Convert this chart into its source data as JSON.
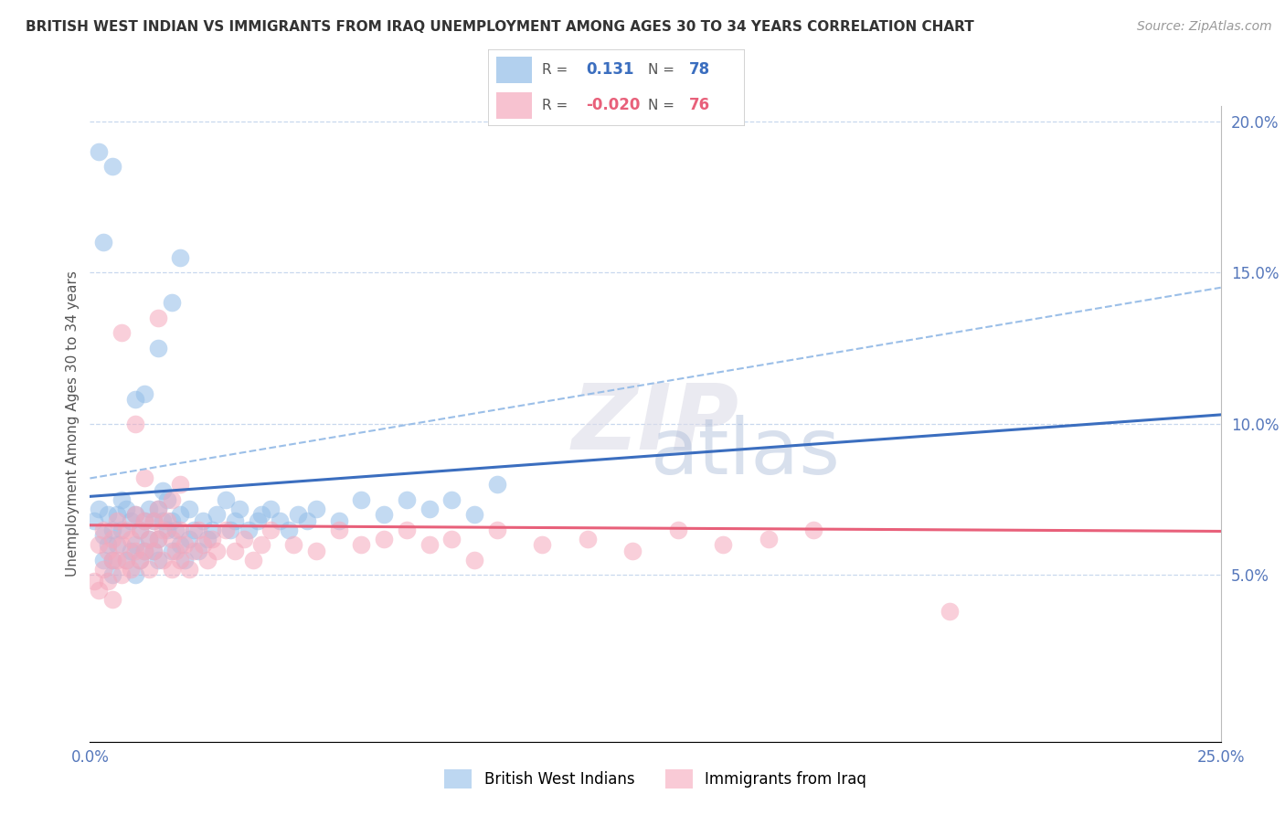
{
  "title": "BRITISH WEST INDIAN VS IMMIGRANTS FROM IRAQ UNEMPLOYMENT AMONG AGES 30 TO 34 YEARS CORRELATION CHART",
  "source": "Source: ZipAtlas.com",
  "ylabel": "Unemployment Among Ages 30 to 34 years",
  "x_ticks": [
    0.0,
    0.05,
    0.1,
    0.15,
    0.2,
    0.25
  ],
  "x_tick_labels": [
    "0.0%",
    "",
    "",
    "",
    "",
    "25.0%"
  ],
  "y_ticks_right": [
    0.0,
    0.05,
    0.1,
    0.15,
    0.2
  ],
  "y_tick_labels_right": [
    "",
    "5.0%",
    "10.0%",
    "15.0%",
    "20.0%"
  ],
  "xlim": [
    0.0,
    0.25
  ],
  "ylim": [
    -0.005,
    0.205
  ],
  "legend_label1": "British West Indians",
  "legend_label2": "Immigrants from Iraq",
  "R1": 0.131,
  "N1": 78,
  "R2": -0.02,
  "N2": 76,
  "color_blue": "#92BDE8",
  "color_pink": "#F5A8BC",
  "color_blue_line": "#3B6EBF",
  "color_pink_line": "#E8607A",
  "color_blue_dashed": "#9BBFE8",
  "blue_line_x0": 0.0,
  "blue_line_y0": 0.076,
  "blue_line_x1": 0.25,
  "blue_line_y1": 0.103,
  "dashed_line_x0": 0.0,
  "dashed_line_y0": 0.082,
  "dashed_line_x1": 0.25,
  "dashed_line_y1": 0.145,
  "pink_line_x0": 0.0,
  "pink_line_y0": 0.0665,
  "pink_line_x1": 0.25,
  "pink_line_y1": 0.0645,
  "blue_x": [
    0.001,
    0.002,
    0.003,
    0.003,
    0.004,
    0.004,
    0.005,
    0.005,
    0.005,
    0.006,
    0.006,
    0.007,
    0.007,
    0.008,
    0.008,
    0.009,
    0.009,
    0.01,
    0.01,
    0.01,
    0.011,
    0.011,
    0.012,
    0.012,
    0.013,
    0.013,
    0.014,
    0.014,
    0.015,
    0.015,
    0.015,
    0.016,
    0.016,
    0.017,
    0.017,
    0.018,
    0.018,
    0.019,
    0.02,
    0.02,
    0.021,
    0.022,
    0.022,
    0.023,
    0.024,
    0.025,
    0.026,
    0.027,
    0.028,
    0.03,
    0.031,
    0.032,
    0.033,
    0.035,
    0.037,
    0.038,
    0.04,
    0.042,
    0.044,
    0.046,
    0.048,
    0.05,
    0.055,
    0.06,
    0.065,
    0.07,
    0.075,
    0.08,
    0.085,
    0.09,
    0.01,
    0.012,
    0.015,
    0.018,
    0.02,
    0.005,
    0.003,
    0.002
  ],
  "blue_y": [
    0.068,
    0.072,
    0.063,
    0.055,
    0.07,
    0.06,
    0.065,
    0.055,
    0.05,
    0.07,
    0.06,
    0.075,
    0.065,
    0.055,
    0.072,
    0.068,
    0.058,
    0.07,
    0.06,
    0.05,
    0.065,
    0.055,
    0.068,
    0.058,
    0.072,
    0.062,
    0.068,
    0.058,
    0.072,
    0.062,
    0.055,
    0.068,
    0.078,
    0.065,
    0.075,
    0.068,
    0.058,
    0.065,
    0.07,
    0.06,
    0.055,
    0.072,
    0.062,
    0.065,
    0.058,
    0.068,
    0.062,
    0.065,
    0.07,
    0.075,
    0.065,
    0.068,
    0.072,
    0.065,
    0.068,
    0.07,
    0.072,
    0.068,
    0.065,
    0.07,
    0.068,
    0.072,
    0.068,
    0.075,
    0.07,
    0.075,
    0.072,
    0.075,
    0.07,
    0.08,
    0.108,
    0.11,
    0.125,
    0.14,
    0.155,
    0.185,
    0.16,
    0.19
  ],
  "pink_x": [
    0.001,
    0.002,
    0.002,
    0.003,
    0.003,
    0.004,
    0.004,
    0.005,
    0.005,
    0.005,
    0.006,
    0.006,
    0.007,
    0.007,
    0.008,
    0.008,
    0.009,
    0.009,
    0.01,
    0.01,
    0.011,
    0.011,
    0.012,
    0.012,
    0.013,
    0.013,
    0.014,
    0.014,
    0.015,
    0.015,
    0.016,
    0.016,
    0.017,
    0.018,
    0.018,
    0.019,
    0.02,
    0.02,
    0.021,
    0.022,
    0.023,
    0.024,
    0.025,
    0.026,
    0.027,
    0.028,
    0.03,
    0.032,
    0.034,
    0.036,
    0.038,
    0.04,
    0.045,
    0.05,
    0.055,
    0.06,
    0.065,
    0.07,
    0.075,
    0.08,
    0.085,
    0.09,
    0.1,
    0.11,
    0.12,
    0.13,
    0.14,
    0.15,
    0.16,
    0.19,
    0.007,
    0.01,
    0.012,
    0.015,
    0.018,
    0.02
  ],
  "pink_y": [
    0.048,
    0.06,
    0.045,
    0.065,
    0.052,
    0.058,
    0.048,
    0.062,
    0.055,
    0.042,
    0.068,
    0.055,
    0.06,
    0.05,
    0.065,
    0.055,
    0.062,
    0.052,
    0.07,
    0.058,
    0.065,
    0.055,
    0.068,
    0.058,
    0.062,
    0.052,
    0.068,
    0.058,
    0.072,
    0.062,
    0.065,
    0.055,
    0.068,
    0.062,
    0.052,
    0.058,
    0.065,
    0.055,
    0.06,
    0.052,
    0.058,
    0.065,
    0.06,
    0.055,
    0.062,
    0.058,
    0.065,
    0.058,
    0.062,
    0.055,
    0.06,
    0.065,
    0.06,
    0.058,
    0.065,
    0.06,
    0.062,
    0.065,
    0.06,
    0.062,
    0.055,
    0.065,
    0.06,
    0.062,
    0.058,
    0.065,
    0.06,
    0.062,
    0.065,
    0.038,
    0.13,
    0.1,
    0.082,
    0.135,
    0.075,
    0.08
  ]
}
